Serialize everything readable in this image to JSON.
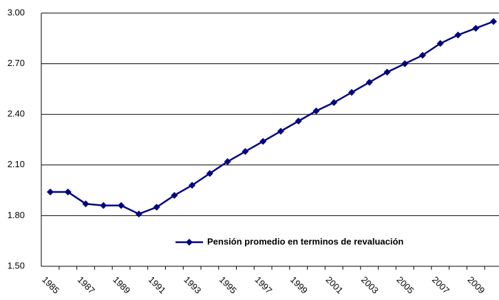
{
  "chart_data": {
    "type": "line",
    "categories": [
      "1985",
      null,
      "1987",
      null,
      "1989",
      null,
      "1991",
      null,
      "1993",
      null,
      "1995",
      null,
      "1997",
      null,
      "1999",
      null,
      "2001",
      null,
      "2003",
      null,
      "2005",
      null,
      "2007",
      null,
      "2009",
      null
    ],
    "series": [
      {
        "name": "Pensión promedio en terminos de revaluación",
        "color": "#000080",
        "values": [
          1.94,
          1.94,
          1.87,
          1.86,
          1.86,
          1.81,
          1.85,
          1.92,
          1.98,
          2.05,
          2.12,
          2.18,
          2.24,
          2.3,
          2.36,
          2.42,
          2.47,
          2.53,
          2.59,
          2.65,
          2.7,
          2.75,
          2.82,
          2.87,
          2.91,
          2.95
        ]
      }
    ],
    "ylim": [
      1.5,
      3.0
    ],
    "yticks": [
      {
        "value": 1.5,
        "label": "1.50"
      },
      {
        "value": 1.8,
        "label": "1.80"
      },
      {
        "value": 2.1,
        "label": "2.10"
      },
      {
        "value": 2.4,
        "label": "2.40"
      },
      {
        "value": 2.7,
        "label": "2.70"
      },
      {
        "value": 3.0,
        "label": "3.00"
      }
    ],
    "grid": true
  }
}
